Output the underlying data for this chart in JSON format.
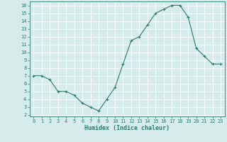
{
  "x": [
    0,
    1,
    2,
    3,
    4,
    5,
    6,
    7,
    8,
    9,
    10,
    11,
    12,
    13,
    14,
    15,
    16,
    17,
    18,
    19,
    20,
    21,
    22,
    23
  ],
  "y": [
    7,
    7,
    6.5,
    5,
    5,
    4.5,
    3.5,
    3,
    2.5,
    4,
    5.5,
    8.5,
    11.5,
    12,
    13.5,
    15,
    15.5,
    16,
    16,
    14.5,
    10.5,
    9.5,
    8.5,
    8.5
  ],
  "xlabel": "Humidex (Indice chaleur)",
  "xlim": [
    -0.5,
    23.5
  ],
  "ylim": [
    1.8,
    16.5
  ],
  "line_color": "#2d7a6e",
  "marker": "+",
  "bg_color": "#d5ecea",
  "grid_color": "#ffffff",
  "tick_color": "#2d7a6e",
  "label_color": "#2d7a6e",
  "xticks": [
    0,
    1,
    2,
    3,
    4,
    5,
    6,
    7,
    8,
    9,
    10,
    11,
    12,
    13,
    14,
    15,
    16,
    17,
    18,
    19,
    20,
    21,
    22,
    23
  ],
  "yticks": [
    2,
    3,
    4,
    5,
    6,
    7,
    8,
    9,
    10,
    11,
    12,
    13,
    14,
    15,
    16
  ],
  "tick_fontsize": 5,
  "xlabel_fontsize": 6,
  "linewidth": 0.8,
  "markersize": 3
}
